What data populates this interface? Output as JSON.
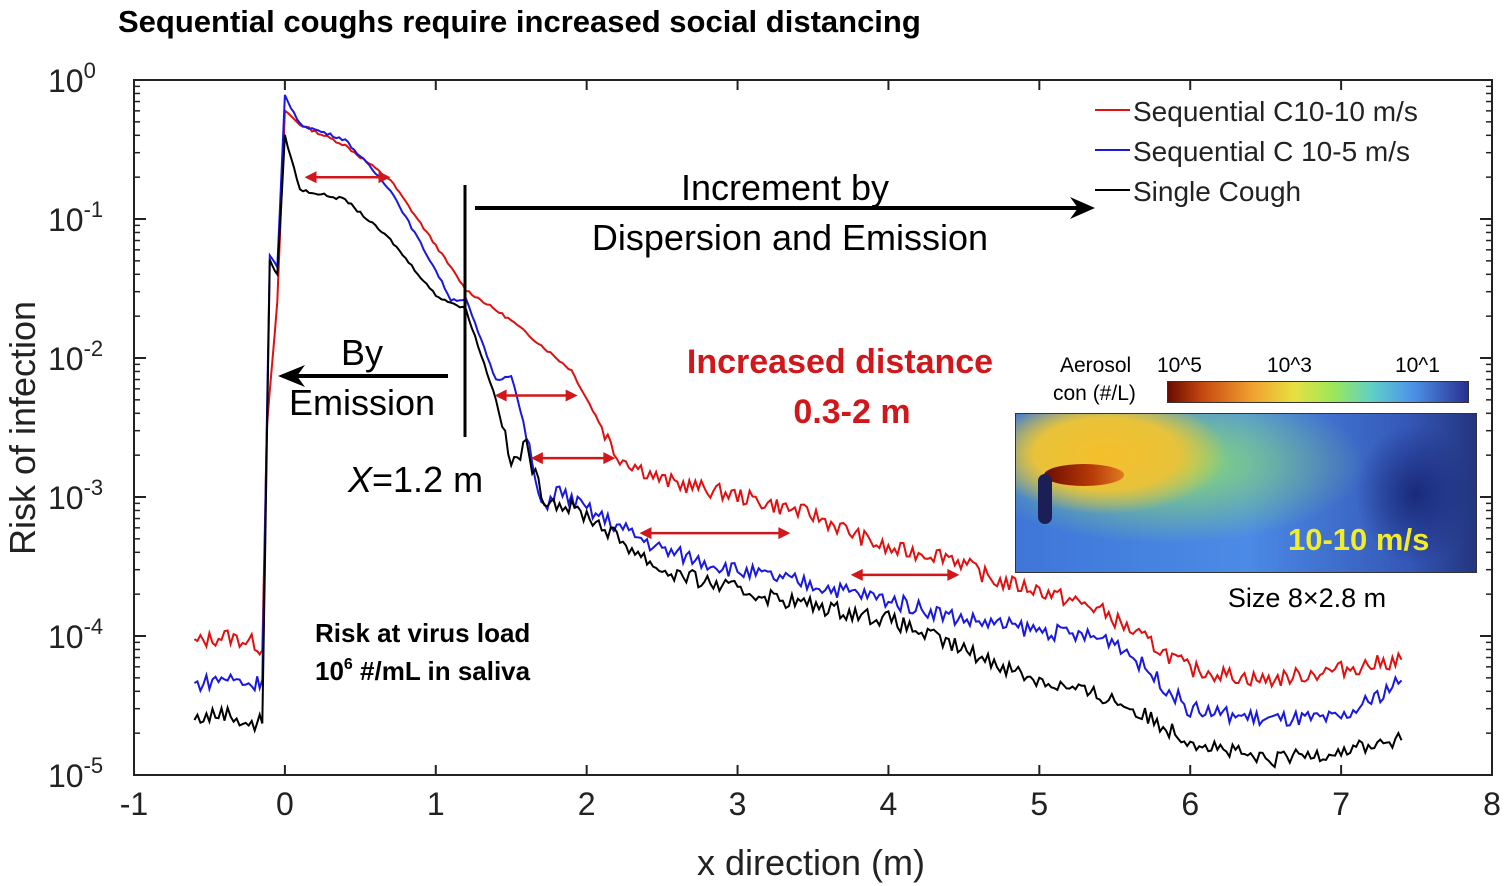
{
  "chart_data": {
    "type": "line",
    "title": "Sequential coughs require increased social distancing",
    "xlabel": "x direction (m)",
    "ylabel": "Risk of infection",
    "xlim": [
      -1,
      8
    ],
    "ylim": [
      1e-05,
      1
    ],
    "yscale": "log",
    "xticks": [
      "-1",
      "0",
      "1",
      "2",
      "3",
      "4",
      "5",
      "6",
      "7",
      "8"
    ],
    "yticks": [
      {
        "base": "10",
        "exp": "0"
      },
      {
        "base": "10",
        "exp": "-1"
      },
      {
        "base": "10",
        "exp": "-2"
      },
      {
        "base": "10",
        "exp": "-3"
      },
      {
        "base": "10",
        "exp": "-4"
      },
      {
        "base": "10",
        "exp": "-5"
      }
    ],
    "legend_position": "top-right",
    "series": [
      {
        "name": "Sequential C10-10 m/s",
        "color": "#e01010",
        "x": [
          -0.6,
          -0.4,
          -0.2,
          -0.15,
          -0.12,
          -0.05,
          0,
          0.1,
          0.4,
          0.7,
          1.0,
          1.2,
          1.5,
          1.7,
          1.9,
          2.2,
          2.5,
          3.0,
          3.5,
          4.0,
          4.4,
          4.7,
          5.0,
          5.4,
          6.0,
          6.5,
          7.0,
          7.4
        ],
        "log10_y": [
          -4.05,
          -4.0,
          -4.05,
          -4.1,
          -2.5,
          -1.6,
          -0.22,
          -0.32,
          -0.47,
          -0.72,
          -1.19,
          -1.51,
          -1.73,
          -1.91,
          -2.09,
          -2.7,
          -2.88,
          -2.99,
          -3.13,
          -3.38,
          -3.42,
          -3.6,
          -3.67,
          -3.81,
          -4.24,
          -4.32,
          -4.24,
          -4.17
        ]
      },
      {
        "name": "Sequential C 10-5 m/s",
        "color": "#1818e0",
        "x": [
          -0.6,
          -0.4,
          -0.2,
          -0.15,
          -0.1,
          -0.05,
          0,
          0.1,
          0.4,
          0.7,
          1.0,
          1.1,
          1.2,
          1.4,
          1.5,
          1.6,
          1.7,
          1.8,
          2.0,
          2.5,
          3.0,
          3.5,
          4.0,
          4.5,
          5.0,
          5.5,
          6.0,
          6.5,
          7.0,
          7.4
        ],
        "log10_y": [
          -4.35,
          -4.3,
          -4.35,
          -4.3,
          -1.26,
          -1.35,
          -0.11,
          -0.32,
          -0.43,
          -0.79,
          -1.37,
          -1.58,
          -1.58,
          -2.16,
          -2.12,
          -2.55,
          -3.09,
          -2.95,
          -3.09,
          -3.38,
          -3.53,
          -3.63,
          -3.74,
          -3.88,
          -3.96,
          -4.03,
          -4.53,
          -4.6,
          -4.6,
          -4.32
        ]
      },
      {
        "name": "Single Cough",
        "color": "#000000",
        "x": [
          -0.6,
          -0.4,
          -0.2,
          -0.15,
          -0.1,
          -0.05,
          0,
          0.1,
          0.4,
          0.7,
          1.0,
          1.2,
          1.4,
          1.5,
          1.6,
          1.7,
          2.0,
          2.5,
          3.0,
          3.5,
          4.0,
          4.5,
          5.0,
          5.5,
          6.0,
          6.5,
          7.0,
          7.4
        ],
        "log10_y": [
          -4.6,
          -4.55,
          -4.65,
          -4.6,
          -1.3,
          -1.4,
          -0.4,
          -0.79,
          -0.86,
          -1.15,
          -1.55,
          -1.65,
          -2.3,
          -2.77,
          -2.63,
          -2.99,
          -3.13,
          -3.53,
          -3.67,
          -3.78,
          -3.88,
          -4.1,
          -4.32,
          -4.46,
          -4.75,
          -4.9,
          -4.82,
          -4.75
        ]
      }
    ],
    "shift_arrows": [
      {
        "x0": 0.13,
        "x1": 0.7,
        "log10_y": -0.7
      },
      {
        "x0": 1.39,
        "x1": 1.94,
        "log10_y": -2.27
      },
      {
        "x0": 1.63,
        "x1": 2.19,
        "log10_y": -2.72
      },
      {
        "x0": 2.35,
        "x1": 3.35,
        "log10_y": -3.26
      },
      {
        "x0": 3.75,
        "x1": 4.47,
        "log10_y": -3.56
      }
    ],
    "annotations": {
      "increment_line1": "Increment by",
      "increment_line2": "Dispersion and Emission",
      "by_line1": "By",
      "by_line2": "Emission",
      "x_marker_var": "X",
      "x_marker_rest": "=1.2 m",
      "increased_line1": "Increased distance",
      "increased_line2": "0.3-2 m",
      "risk_line1": "Risk at virus load",
      "risk_line2_base": "10",
      "risk_line2_exp": "6",
      "risk_line2_rest": " #/mL in saliva"
    },
    "inset": {
      "colorbar_title1": "Aerosol",
      "colorbar_title2": "con (#/L)",
      "colorbar_ticks": [
        "10^5",
        "10^3",
        "10^1"
      ],
      "label": "10-10 m/s",
      "caption": "Size 8×2.8 m"
    }
  }
}
